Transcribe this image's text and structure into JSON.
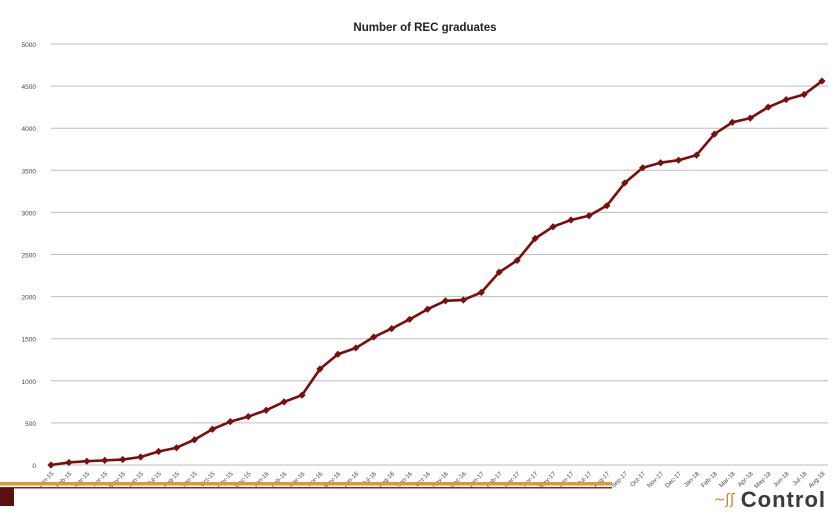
{
  "chart_data": {
    "type": "line",
    "title": "Number of REC graduates",
    "xlabel": "",
    "ylabel": "",
    "ylim": [
      0,
      5000
    ],
    "yticks": [
      0,
      500,
      1000,
      1500,
      2000,
      2500,
      3000,
      3500,
      4000,
      4500,
      5000
    ],
    "grid": true,
    "categories": [
      "Jan-15",
      "Feb-15",
      "Mar-15",
      "Apr-15",
      "May-15",
      "Jun-15",
      "Jul-15",
      "Aug-15",
      "Sep-15",
      "Oct-15",
      "Nov-15",
      "Dec-15",
      "Jan-16",
      "Feb-16",
      "Mar-16",
      "Apr-16",
      "May-16",
      "Jun-16",
      "Jul-16",
      "Aug-16",
      "Sep-16",
      "Oct-16",
      "Nov-16",
      "Dec-16",
      "Jan-17",
      "Feb-17",
      "Mar-17",
      "Apr-17",
      "May-17",
      "Jun-17",
      "Jul-17",
      "Aug-17",
      "Sep-17",
      "Oct-17",
      "Nov-17",
      "Dec-17",
      "Jan-18",
      "Feb-18",
      "Mar-18",
      "Apr-18",
      "May-18",
      "Jun-18",
      "Jul-18",
      "Aug-18"
    ],
    "series": [
      {
        "color": "#7b0d0d",
        "values": [
          0,
          30,
          45,
          55,
          65,
          95,
          160,
          205,
          300,
          425,
          515,
          575,
          650,
          750,
          830,
          1140,
          1315,
          1390,
          1520,
          1620,
          1730,
          1850,
          1950,
          1960,
          2050,
          2290,
          2430,
          2690,
          2830,
          2910,
          2960,
          3080,
          3350,
          3530,
          3590,
          3620,
          3680,
          3930,
          4070,
          4120,
          4250,
          4340,
          4400,
          4560
        ]
      }
    ]
  },
  "footer": {
    "logo_text": "Control",
    "accent_color": "#c77d1f",
    "rule_color": "#d99a3a",
    "logo_icon": "swirl-icon"
  }
}
